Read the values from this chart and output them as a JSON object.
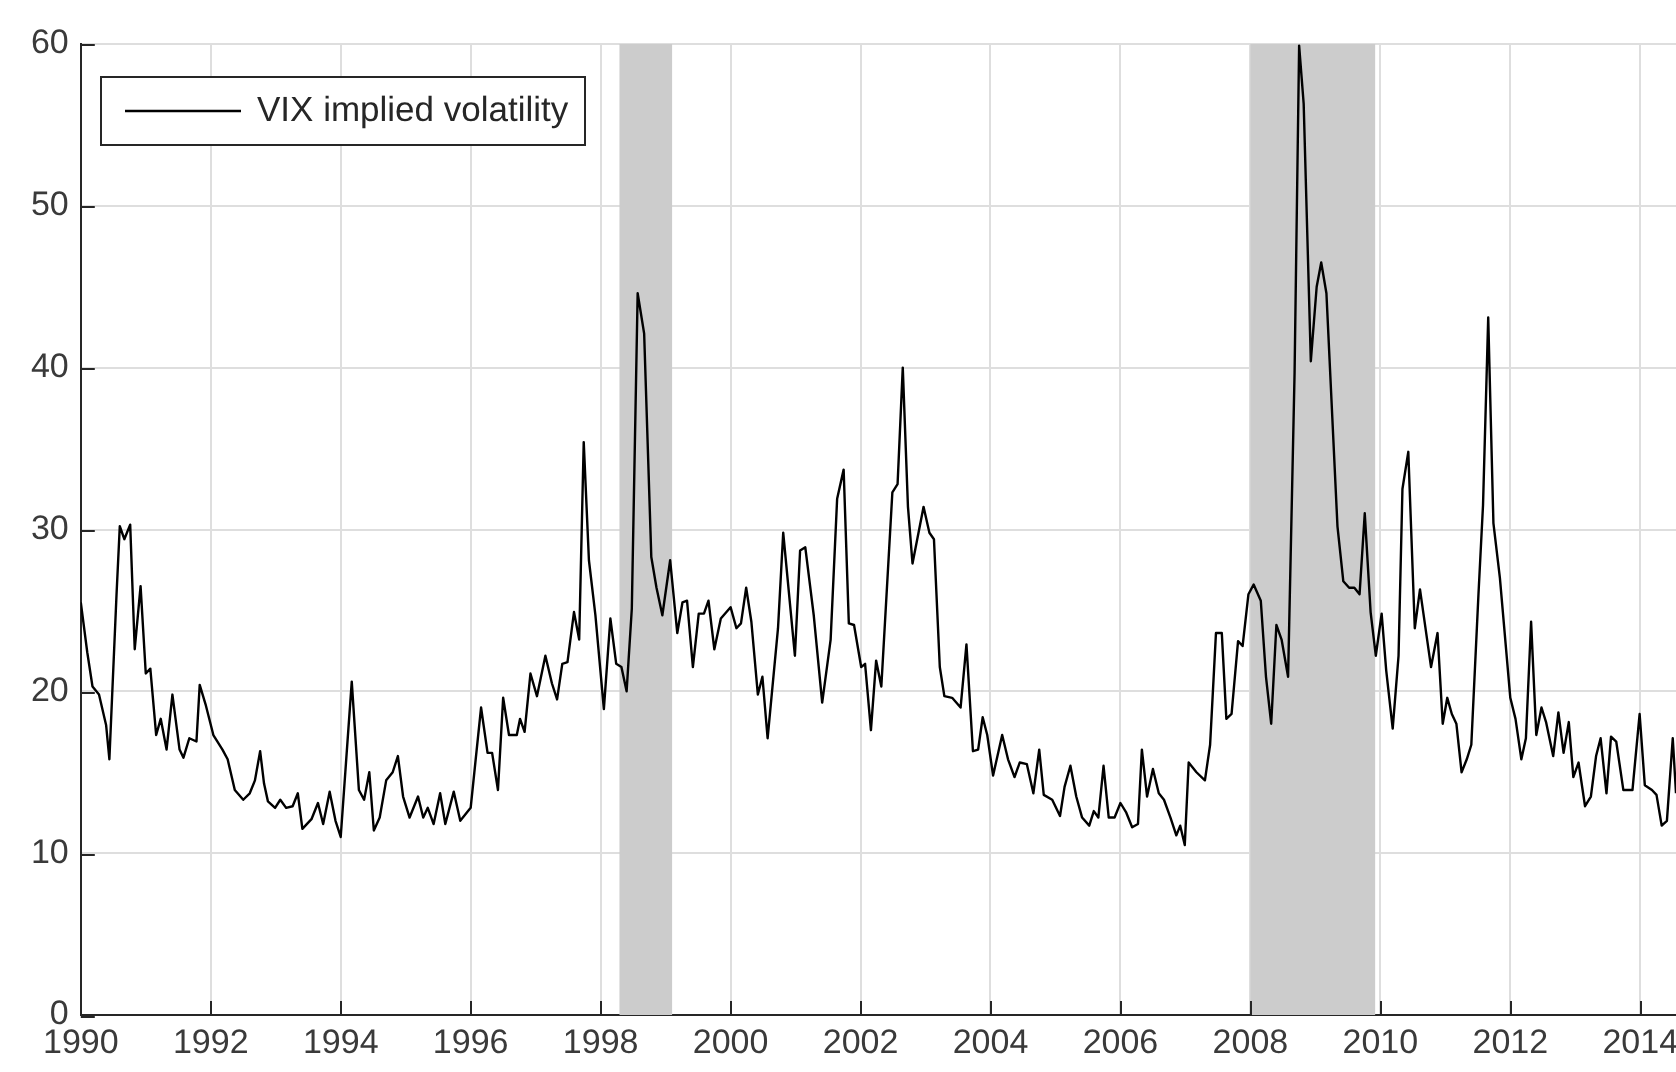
{
  "chart_data": {
    "type": "line",
    "x": [
      1990.0,
      1990.1,
      1990.18,
      1990.28,
      1990.39,
      1990.44,
      1990.55,
      1990.6,
      1990.67,
      1990.76,
      1990.83,
      1990.92,
      1991.0,
      1991.07,
      1991.16,
      1991.23,
      1991.32,
      1991.41,
      1991.52,
      1991.58,
      1991.67,
      1991.78,
      1991.83,
      1991.92,
      1992.04,
      1992.18,
      1992.26,
      1992.37,
      1992.5,
      1992.6,
      1992.68,
      1992.76,
      1992.82,
      1992.88,
      1992.99,
      1993.07,
      1993.16,
      1993.26,
      1993.34,
      1993.41,
      1993.55,
      1993.65,
      1993.73,
      1993.83,
      1993.92,
      1994.0,
      1994.17,
      1994.28,
      1994.36,
      1994.44,
      1994.51,
      1994.6,
      1994.7,
      1994.8,
      1994.88,
      1994.96,
      1995.06,
      1995.19,
      1995.27,
      1995.34,
      1995.43,
      1995.53,
      1995.61,
      1995.74,
      1995.84,
      1996.0,
      1996.16,
      1996.26,
      1996.33,
      1996.42,
      1996.5,
      1996.59,
      1996.71,
      1996.76,
      1996.83,
      1996.92,
      1997.02,
      1997.15,
      1997.25,
      1997.33,
      1997.41,
      1997.49,
      1997.59,
      1997.67,
      1997.74,
      1997.82,
      1997.92,
      1998.05,
      1998.15,
      1998.24,
      1998.32,
      1998.4,
      1998.48,
      1998.57,
      1998.67,
      1998.78,
      1998.86,
      1998.95,
      1999.07,
      1999.18,
      1999.26,
      1999.33,
      1999.42,
      1999.51,
      1999.59,
      1999.66,
      1999.75,
      1999.85,
      2000.0,
      2000.09,
      2000.16,
      2000.24,
      2000.32,
      2000.42,
      2000.49,
      2000.57,
      2000.73,
      2000.81,
      2000.99,
      2001.07,
      2001.15,
      2001.28,
      2001.41,
      2001.54,
      2001.64,
      2001.74,
      2001.82,
      2001.9,
      2002.01,
      2002.07,
      2002.16,
      2002.24,
      2002.32,
      2002.49,
      2002.57,
      2002.65,
      2002.73,
      2002.8,
      2002.97,
      2003.06,
      2003.13,
      2003.22,
      2003.29,
      2003.41,
      2003.54,
      2003.63,
      2003.73,
      2003.81,
      2003.88,
      2003.95,
      2004.04,
      2004.18,
      2004.27,
      2004.37,
      2004.45,
      2004.56,
      2004.66,
      2004.75,
      2004.82,
      2004.95,
      2005.07,
      2005.14,
      2005.23,
      2005.32,
      2005.41,
      2005.52,
      2005.59,
      2005.66,
      2005.74,
      2005.82,
      2005.91,
      2006.0,
      2006.09,
      2006.18,
      2006.27,
      2006.33,
      2006.41,
      2006.5,
      2006.59,
      2006.67,
      2006.77,
      2006.86,
      2006.92,
      2006.99,
      2007.05,
      2007.17,
      2007.3,
      2007.38,
      2007.47,
      2007.56,
      2007.63,
      2007.71,
      2007.81,
      2007.88,
      2007.97,
      2008.05,
      2008.16,
      2008.24,
      2008.32,
      2008.4,
      2008.48,
      2008.58,
      2008.68,
      2008.75,
      2008.82,
      2008.93,
      2009.02,
      2009.09,
      2009.17,
      2009.34,
      2009.43,
      2009.52,
      2009.6,
      2009.68,
      2009.76,
      2009.85,
      2009.93,
      2010.02,
      2010.09,
      2010.19,
      2010.28,
      2010.34,
      2010.43,
      2010.53,
      2010.61,
      2010.78,
      2010.88,
      2010.96,
      2011.03,
      2011.1,
      2011.17,
      2011.25,
      2011.33,
      2011.4,
      2011.51,
      2011.58,
      2011.66,
      2011.74,
      2011.84,
      2012.0,
      2012.08,
      2012.17,
      2012.24,
      2012.32,
      2012.4,
      2012.48,
      2012.55,
      2012.66,
      2012.74,
      2012.82,
      2012.9,
      2012.97,
      2013.05,
      2013.15,
      2013.24,
      2013.32,
      2013.39,
      2013.48,
      2013.55,
      2013.63,
      2013.74,
      2013.88,
      2013.99,
      2014.07,
      2014.18,
      2014.25,
      2014.33,
      2014.41,
      2014.5,
      2014.55
    ],
    "series": [
      {
        "name": "VIX implied volatility",
        "color": "#000000",
        "values": [
          25.5,
          22.4,
          20.3,
          19.8,
          17.9,
          15.8,
          26.0,
          30.2,
          29.4,
          30.3,
          22.6,
          26.5,
          21.1,
          21.4,
          17.3,
          18.3,
          16.4,
          19.8,
          16.4,
          15.9,
          17.1,
          16.9,
          20.4,
          19.2,
          17.3,
          16.4,
          15.8,
          13.9,
          13.3,
          13.7,
          14.5,
          16.3,
          14.3,
          13.2,
          12.8,
          13.3,
          12.8,
          12.9,
          13.7,
          11.5,
          12.1,
          13.1,
          11.8,
          13.8,
          12.0,
          11.0,
          20.6,
          13.9,
          13.3,
          15.0,
          11.4,
          12.2,
          14.5,
          15.0,
          16.0,
          13.5,
          12.2,
          13.5,
          12.2,
          12.8,
          11.8,
          13.7,
          11.8,
          13.8,
          12.0,
          12.8,
          19.0,
          16.2,
          16.2,
          13.9,
          19.6,
          17.3,
          17.3,
          18.3,
          17.5,
          21.1,
          19.7,
          22.2,
          20.5,
          19.5,
          21.7,
          21.8,
          24.9,
          23.2,
          35.4,
          28.1,
          24.7,
          18.9,
          24.5,
          21.7,
          21.5,
          20.0,
          25.1,
          44.6,
          42.1,
          28.3,
          26.4,
          24.7,
          28.1,
          23.6,
          25.5,
          25.6,
          21.5,
          24.8,
          24.8,
          25.6,
          22.6,
          24.5,
          25.2,
          23.9,
          24.2,
          26.4,
          24.3,
          19.8,
          20.9,
          17.1,
          23.9,
          29.8,
          22.2,
          28.7,
          28.9,
          24.7,
          19.3,
          23.2,
          31.9,
          33.7,
          24.2,
          24.1,
          21.5,
          21.7,
          17.6,
          21.9,
          20.3,
          32.3,
          32.8,
          40.0,
          31.4,
          27.9,
          31.4,
          29.8,
          29.4,
          21.5,
          19.7,
          19.6,
          19.0,
          22.9,
          16.3,
          16.4,
          18.4,
          17.3,
          14.8,
          17.3,
          15.8,
          14.7,
          15.6,
          15.5,
          13.7,
          16.4,
          13.6,
          13.3,
          12.3,
          14.1,
          15.4,
          13.5,
          12.2,
          11.7,
          12.6,
          12.2,
          15.4,
          12.2,
          12.2,
          13.1,
          12.5,
          11.6,
          11.8,
          16.4,
          13.5,
          15.2,
          13.7,
          13.3,
          12.2,
          11.1,
          11.7,
          10.5,
          15.6,
          15.0,
          14.5,
          16.7,
          23.6,
          23.6,
          18.3,
          18.6,
          23.1,
          22.8,
          26.0,
          26.6,
          25.6,
          20.9,
          18.0,
          24.1,
          23.2,
          20.9,
          39.7,
          59.9,
          56.3,
          40.4,
          45.0,
          46.5,
          44.6,
          30.2,
          26.8,
          26.4,
          26.4,
          26.0,
          31.0,
          24.9,
          22.2,
          24.8,
          21.3,
          17.7,
          22.2,
          32.5,
          34.8,
          23.9,
          26.3,
          21.5,
          23.6,
          18.0,
          19.6,
          18.6,
          18.0,
          15.0,
          15.8,
          16.7,
          26.0,
          31.5,
          43.1,
          30.4,
          27.0,
          19.6,
          18.3,
          15.8,
          17.1,
          24.3,
          17.3,
          19.0,
          18.1,
          16.0,
          18.7,
          16.2,
          18.1,
          14.7,
          15.6,
          12.9,
          13.5,
          16.0,
          17.1,
          13.7,
          17.2,
          16.9,
          13.9,
          13.9,
          18.6,
          14.2,
          13.9,
          13.6,
          11.7,
          12.0,
          17.1,
          13.7
        ]
      }
    ],
    "xlim": [
      1990,
      2014.55
    ],
    "ylim": [
      0,
      60
    ],
    "xticks": [
      1990,
      1992,
      1994,
      1996,
      1998,
      2000,
      2002,
      2004,
      2006,
      2008,
      2010,
      2012,
      2014
    ],
    "yticks": [
      0,
      10,
      20,
      30,
      40,
      50,
      60
    ],
    "bands": [
      {
        "axis": "x",
        "from": 1998.29,
        "to": 1999.1,
        "color": "#cccccc"
      },
      {
        "axis": "x",
        "from": 2008.0,
        "to": 2009.92,
        "color": "#cccccc"
      }
    ],
    "grid": true,
    "legend": "top left",
    "marker": "none",
    "line_style": "solid"
  }
}
